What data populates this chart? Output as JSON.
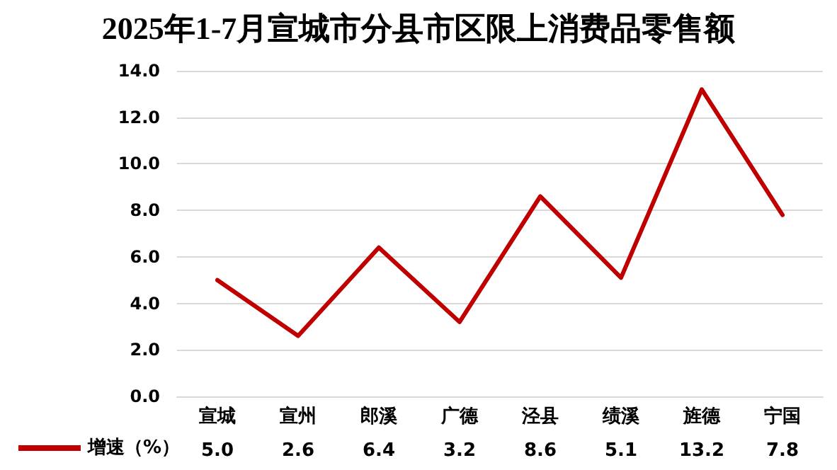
{
  "chart_data": {
    "type": "line",
    "title": "2025年1-7月宣城市分县市区限上消费品零售额",
    "categories": [
      "宣城",
      "宣州",
      "郎溪",
      "广德",
      "泾县",
      "绩溪",
      "旌德",
      "宁国"
    ],
    "series": [
      {
        "name": "增速（%）",
        "color": "#c00000",
        "values": [
          5.0,
          2.6,
          6.4,
          3.2,
          8.6,
          5.1,
          13.2,
          7.8
        ],
        "value_labels": [
          "5.0",
          "2.6",
          "6.4",
          "3.2",
          "8.6",
          "5.1",
          "13.2",
          "7.8"
        ]
      }
    ],
    "ylim": [
      0,
      14
    ],
    "yticks": [
      {
        "value": 0,
        "label": "0.0"
      },
      {
        "value": 2,
        "label": "2.0"
      },
      {
        "value": 4,
        "label": "4.0"
      },
      {
        "value": 6,
        "label": "6.0"
      },
      {
        "value": 8,
        "label": "8.0"
      },
      {
        "value": 10,
        "label": "10.0"
      },
      {
        "value": 12,
        "label": "12.0"
      },
      {
        "value": 14,
        "label": "14.0"
      }
    ],
    "grid": "y",
    "legend": "bottom left",
    "marker": "none",
    "line_style": "solid"
  }
}
